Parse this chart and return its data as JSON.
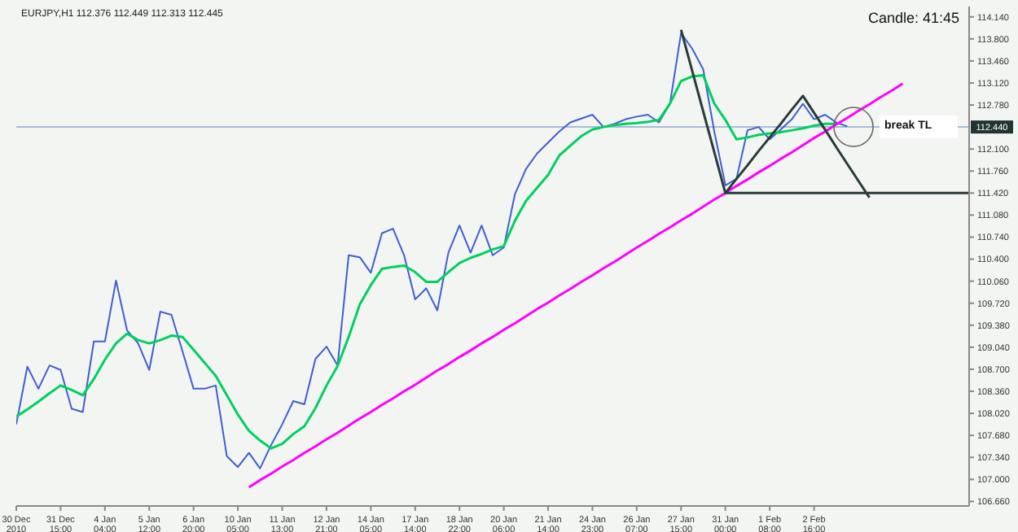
{
  "chart_data": {
    "type": "line",
    "title": "EURJPY,H1  112.376 112.449 112.313 112.445",
    "annotations": [
      "Candle: 41:45",
      "break TL"
    ],
    "categories": [
      "30 Dec 2010",
      null,
      null,
      null,
      "31 Dec 15:00",
      null,
      null,
      null,
      "4 Jan 04:00",
      null,
      null,
      null,
      "5 Jan 12:00",
      null,
      null,
      null,
      "6 Jan 20:00",
      null,
      null,
      null,
      "10 Jan 05:00",
      null,
      null,
      null,
      "11 Jan 13:00",
      null,
      null,
      null,
      "12 Jan 21:00",
      null,
      null,
      null,
      "14 Jan 05:00",
      null,
      null,
      null,
      "17 Jan 14:00",
      null,
      null,
      null,
      "18 Jan 22:00",
      null,
      null,
      null,
      "20 Jan 06:00",
      null,
      null,
      null,
      "21 Jan 14:00",
      null,
      null,
      null,
      "24 Jan 23:00",
      null,
      null,
      null,
      "26 Jan 07:00",
      null,
      null,
      null,
      "27 Jan 15:00",
      null,
      null,
      null,
      "31 Jan 00:00",
      null,
      null,
      null,
      "1 Feb 08:00",
      null,
      null,
      null,
      "2 Feb 16:00",
      null,
      null,
      null,
      null,
      null,
      null,
      null,
      null,
      null,
      null,
      null,
      null,
      null,
      null
    ],
    "ylim": [
      106.59,
      114.3
    ],
    "yticks": [
      {
        "value": 106.66,
        "label": "106.660"
      },
      {
        "value": 107,
        "label": "107.000"
      },
      {
        "value": 107.34,
        "label": "107.340"
      },
      {
        "value": 107.68,
        "label": "107.680"
      },
      {
        "value": 108.02,
        "label": "108.020"
      },
      {
        "value": 108.36,
        "label": "108.360"
      },
      {
        "value": 108.7,
        "label": "108.700"
      },
      {
        "value": 109.04,
        "label": "109.040"
      },
      {
        "value": 109.38,
        "label": "109.380"
      },
      {
        "value": 109.72,
        "label": "109.720"
      },
      {
        "value": 110.06,
        "label": "110.060"
      },
      {
        "value": 110.4,
        "label": "110.400"
      },
      {
        "value": 110.74,
        "label": "110.740"
      },
      {
        "value": 111.08,
        "label": "111.080"
      },
      {
        "value": 111.42,
        "label": "111.420"
      },
      {
        "value": 111.76,
        "label": "111.760"
      },
      {
        "value": 112.1,
        "label": "112.100"
      },
      {
        "value": 112.78,
        "label": "112.780"
      },
      {
        "value": 113.12,
        "label": "113.120"
      },
      {
        "value": 113.46,
        "label": "113.460"
      },
      {
        "value": 113.8,
        "label": "113.800"
      },
      {
        "value": 114.14,
        "label": "114.140"
      }
    ],
    "ref_lines": [
      {
        "axis": "y",
        "value": 112.44,
        "label": "112.440",
        "color": "#a8bcd8"
      }
    ],
    "series": [
      {
        "color": "#3f5fd0",
        "values": [
          107.85,
          108.74,
          108.4,
          108.76,
          108.69,
          108.09,
          108.04,
          109.13,
          109.13,
          110.07,
          109.3,
          109.1,
          108.69,
          109.59,
          109.54,
          108.98,
          108.4,
          108.4,
          108.45,
          107.36,
          107.19,
          107.41,
          107.17,
          107.53,
          107.85,
          108.21,
          108.16,
          108.86,
          109.05,
          108.76,
          110.46,
          110.43,
          110.19,
          110.8,
          110.87,
          110.46,
          109.78,
          109.95,
          109.61,
          110.5,
          110.92,
          110.5,
          110.92,
          110.46,
          110.58,
          111.4,
          111.79,
          112.03,
          112.2,
          112.37,
          112.51,
          112.57,
          112.63,
          112.44,
          112.49,
          112.56,
          112.6,
          112.63,
          112.51,
          112.8,
          113.89,
          113.65,
          113.33,
          112.37,
          111.54,
          111.64,
          112.39,
          112.44,
          112.25,
          112.4,
          112.56,
          112.8,
          112.56,
          112.63,
          112.51,
          112.45,
          null,
          null,
          null,
          null,
          null,
          null,
          null,
          null,
          null,
          null,
          null
        ]
      },
      {
        "color": "#00d060",
        "values": [
          107.97,
          108.08,
          108.2,
          108.33,
          108.45,
          108.38,
          108.3,
          108.55,
          108.85,
          109.1,
          109.25,
          109.15,
          109.1,
          109.15,
          109.22,
          109.2,
          109.0,
          108.8,
          108.6,
          108.3,
          108.0,
          107.75,
          107.6,
          107.48,
          107.55,
          107.7,
          107.82,
          108.1,
          108.45,
          108.75,
          109.2,
          109.7,
          110.0,
          110.25,
          110.28,
          110.3,
          110.2,
          110.05,
          110.05,
          110.2,
          110.34,
          110.42,
          110.48,
          110.55,
          110.6,
          110.99,
          111.3,
          111.5,
          111.7,
          112.0,
          112.15,
          112.3,
          112.4,
          112.44,
          112.47,
          112.49,
          112.5,
          112.52,
          112.55,
          112.8,
          113.15,
          113.22,
          113.24,
          112.8,
          112.55,
          112.25,
          112.28,
          112.32,
          112.34,
          112.36,
          112.39,
          112.42,
          112.46,
          112.49,
          112.49,
          null,
          null,
          null,
          null,
          null,
          null,
          null,
          null,
          null,
          null,
          null,
          null
        ]
      },
      {
        "color": "#ff00ff",
        "values": [
          null,
          null,
          null,
          null,
          null,
          null,
          null,
          null,
          null,
          null,
          null,
          null,
          null,
          null,
          null,
          null,
          null,
          null,
          null,
          null,
          null,
          106.88,
          106.99,
          107.09,
          107.2,
          107.3,
          107.41,
          107.51,
          107.62,
          107.72,
          107.83,
          107.94,
          108.04,
          108.15,
          108.25,
          108.36,
          108.46,
          108.57,
          108.68,
          108.78,
          108.89,
          108.99,
          109.1,
          109.2,
          109.31,
          109.41,
          109.52,
          109.63,
          109.73,
          109.84,
          109.94,
          110.05,
          110.15,
          110.26,
          110.36,
          110.47,
          110.58,
          110.68,
          110.79,
          110.89,
          111.0,
          111.1,
          111.21,
          111.32,
          111.42,
          111.53,
          111.63,
          111.74,
          111.84,
          111.95,
          112.05,
          112.16,
          112.27,
          112.37,
          112.48,
          112.58,
          112.69,
          112.79,
          112.9,
          113.0,
          113.11,
          null,
          null,
          null,
          null,
          null,
          null
        ]
      },
      {
        "color": "#2a3a3a",
        "values": [
          null,
          null,
          null,
          null,
          null,
          null,
          null,
          null,
          null,
          null,
          null,
          null,
          null,
          null,
          null,
          null,
          null,
          null,
          null,
          null,
          null,
          null,
          null,
          null,
          null,
          null,
          null,
          null,
          null,
          null,
          null,
          null,
          null,
          null,
          null,
          null,
          null,
          null,
          null,
          null,
          null,
          null,
          null,
          null,
          null,
          null,
          null,
          null,
          null,
          null,
          null,
          null,
          null,
          null,
          null,
          null,
          null,
          null,
          null,
          null,
          113.94,
          113.31,
          112.68,
          112.05,
          111.42,
          111.64,
          111.85,
          112.07,
          112.28,
          112.49,
          112.71,
          112.92,
          112.66,
          112.4,
          112.13,
          111.87,
          111.61,
          111.35,
          null,
          null,
          null,
          null,
          null,
          null,
          null,
          null,
          null
        ]
      },
      {
        "color": "#2a3a3a",
        "values": [
          null,
          null,
          null,
          null,
          null,
          null,
          null,
          null,
          null,
          null,
          null,
          null,
          null,
          null,
          null,
          null,
          null,
          null,
          null,
          null,
          null,
          null,
          null,
          null,
          null,
          null,
          null,
          null,
          null,
          null,
          null,
          null,
          null,
          null,
          null,
          null,
          null,
          null,
          null,
          null,
          null,
          null,
          null,
          null,
          null,
          null,
          null,
          null,
          null,
          null,
          null,
          null,
          null,
          null,
          null,
          null,
          null,
          null,
          null,
          null,
          null,
          null,
          null,
          null,
          111.42,
          111.42,
          111.42,
          111.42,
          111.42,
          111.42,
          111.42,
          111.42,
          111.42,
          111.42,
          111.42,
          111.42,
          111.42,
          111.42,
          111.42,
          111.42,
          111.42,
          111.42,
          111.42,
          111.42,
          111.42,
          111.42,
          111.42
        ]
      }
    ]
  }
}
